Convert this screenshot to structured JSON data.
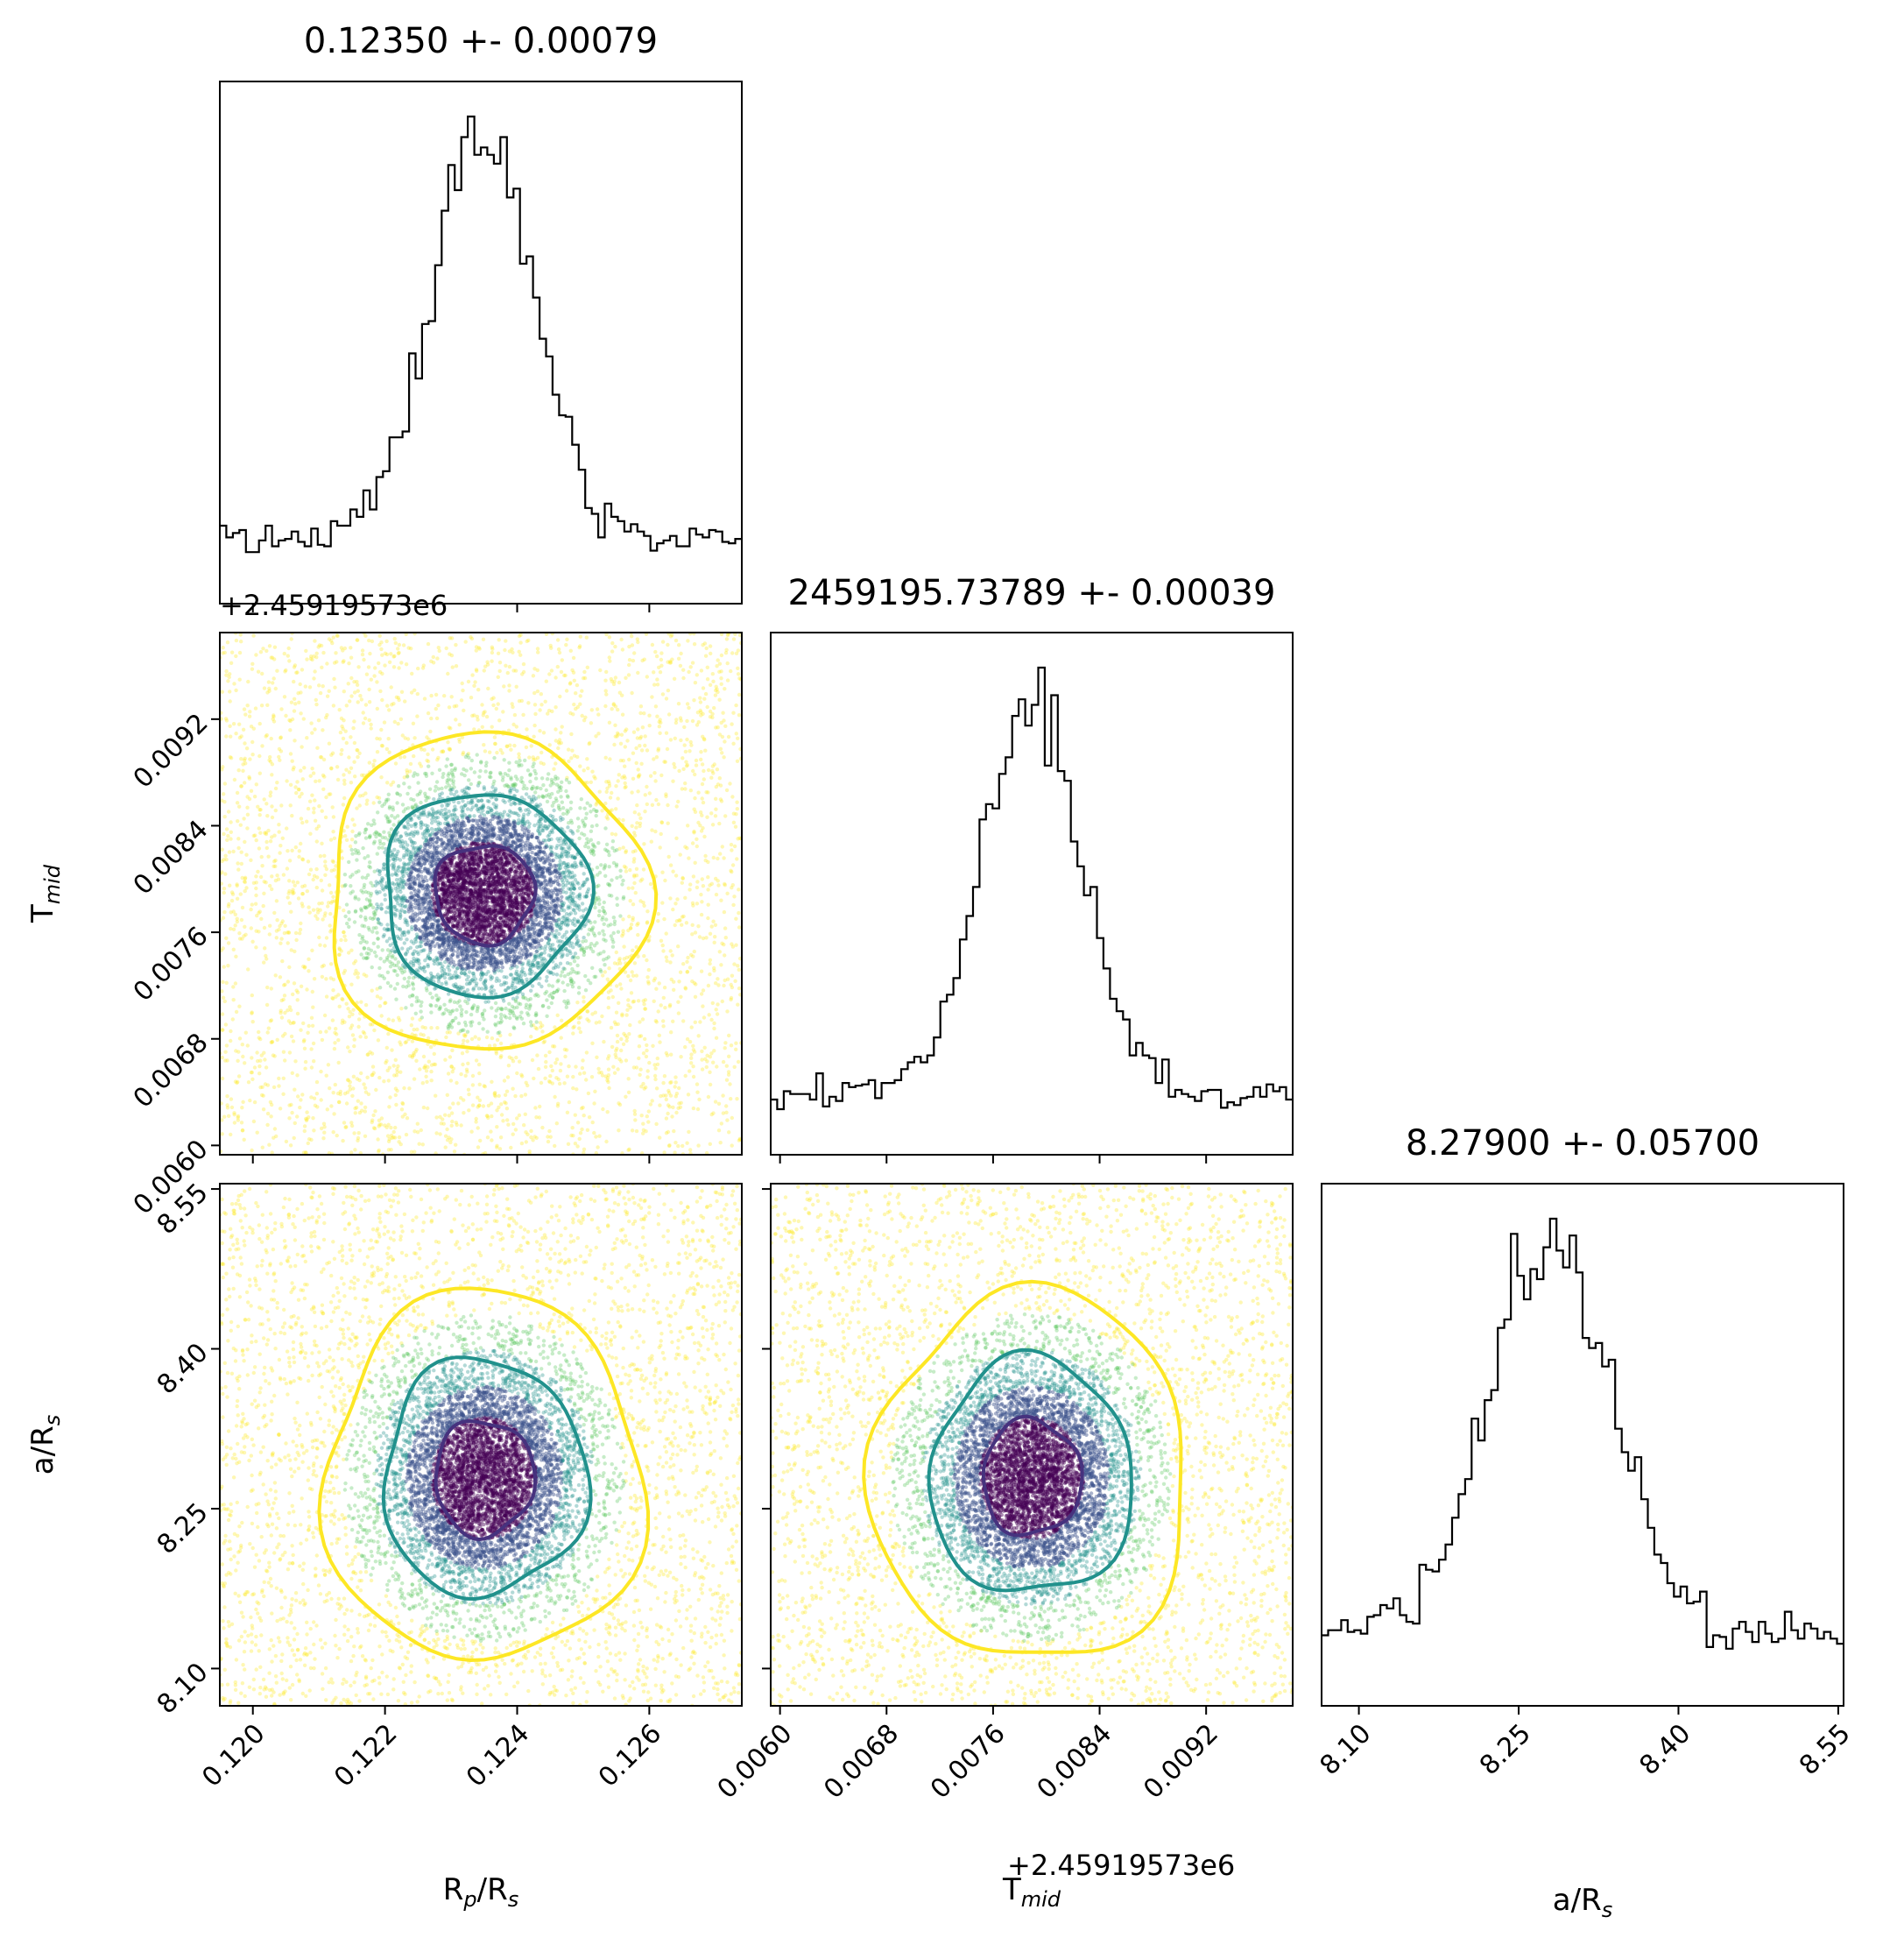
{
  "chart_data": {
    "type": "corner",
    "parameters": [
      {
        "key": "rp",
        "label": "R_p/R_s",
        "label_base": "R",
        "label_sub": "p",
        "label_tail": "/R",
        "label_sub2": "s",
        "title": "0.12350 +- 0.00079",
        "median": 0.1235,
        "sigma": 0.00079,
        "range": [
          0.1195,
          0.1274
        ],
        "ticks": [
          "0.120",
          "0.122",
          "0.124",
          "0.126"
        ],
        "tick_values": [
          0.12,
          0.122,
          0.124,
          0.126
        ]
      },
      {
        "key": "tmid",
        "label": "T_mid",
        "label_base": "T",
        "label_sub": "mid",
        "label_tail": "",
        "label_sub2": "",
        "title": "2459195.73789 +- 0.00039",
        "median": 0.00789,
        "sigma": 0.00039,
        "offset_text": "+2.45919573e6",
        "range": [
          0.00593,
          0.00985
        ],
        "ticks": [
          "0.0060",
          "0.0068",
          "0.0076",
          "0.0084",
          "0.0092"
        ],
        "tick_values": [
          0.006,
          0.0068,
          0.0076,
          0.0084,
          0.0092
        ]
      },
      {
        "key": "ars",
        "label": "a/R_s",
        "label_base": "a/R",
        "label_sub": "s",
        "label_tail": "",
        "label_sub2": "",
        "title": "8.27900 +- 0.05700",
        "median": 8.279,
        "sigma": 0.057,
        "range": [
          8.065,
          8.555
        ],
        "ticks": [
          "8.10",
          "8.25",
          "8.40",
          "8.55"
        ],
        "tick_values": [
          8.1,
          8.25,
          8.4,
          8.55
        ]
      }
    ],
    "contour_levels": [
      {
        "level": "inner",
        "color": "#46327e"
      },
      {
        "level": "middle",
        "color": "#21918c"
      },
      {
        "level": "outer",
        "color": "#fde725"
      }
    ],
    "scatter_colormap": [
      "#440154",
      "#3b528b",
      "#21918c",
      "#5ec962",
      "#fde725"
    ],
    "histogram_color": "#000000"
  }
}
